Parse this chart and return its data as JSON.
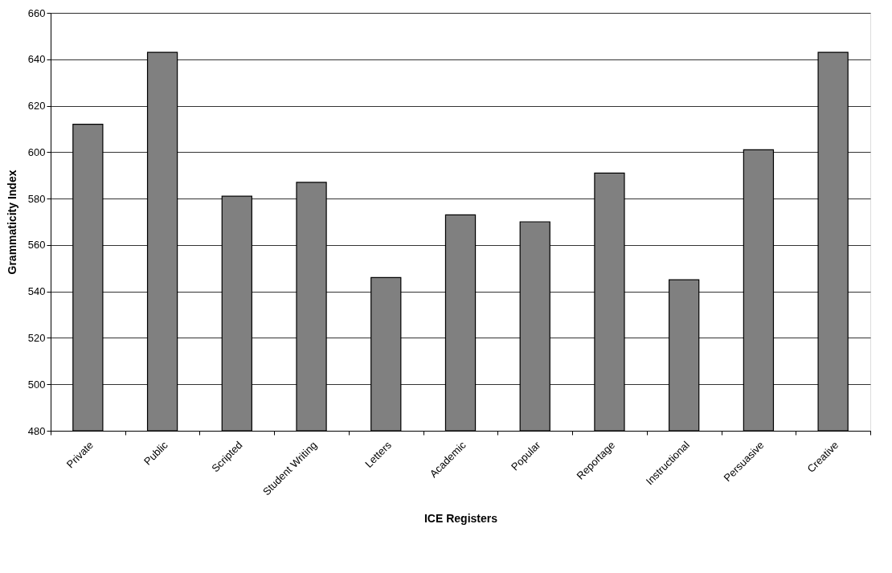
{
  "chart_data": {
    "type": "bar",
    "xlabel": "ICE Registers",
    "ylabel": "Grammaticity Index",
    "categories": [
      "Private",
      "Public",
      "Scripted",
      "Student Writing",
      "Letters",
      "Academic",
      "Popular",
      "Reportage",
      "Instructional",
      "Persuasive",
      "Creative"
    ],
    "values": [
      612,
      643,
      581,
      587,
      546,
      573,
      570,
      591,
      545,
      601,
      643
    ],
    "color": "#808080",
    "ylim": [
      480,
      660
    ],
    "yticks": [
      480,
      500,
      520,
      540,
      560,
      580,
      600,
      620,
      640,
      660
    ],
    "grid": "y"
  }
}
